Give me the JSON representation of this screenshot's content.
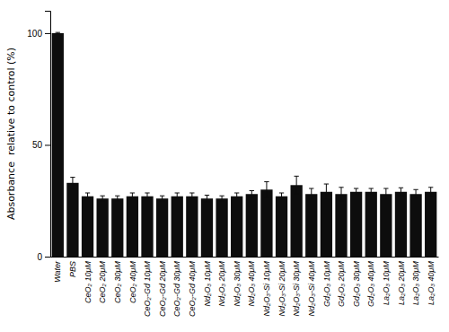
{
  "chart_data": {
    "type": "bar",
    "categories": [
      "Water",
      "PBS",
      "CeO₂ 10μM",
      "CeO₂ 20μM",
      "CeO₂ 30μM",
      "CeO₂ 40μM",
      "CeO₂-Gd 10μM",
      "CeO₂-Gd 20μM",
      "CeO₂-Gd 30μM",
      "CeO₂-Gd 40μM",
      "Nd₂O₃ 10μM",
      "Nd₂O₃ 20μM",
      "Nd₂O₃ 30μM",
      "Nd₂O₃ 40μM",
      "Nd₂O₃-Si 10μM",
      "Nd₂O₃-Si 20μM",
      "Nd₂O₃-Si 30μM",
      "Nd₂O₃-Si 40μM",
      "Gd₂O₃ 10μM",
      "Gd₂O₃ 20μM",
      "Gd₂O₃ 30μM",
      "Gd₂O₃ 40μM",
      "La₂O₃ 10μM",
      "La₂O₃ 20μM",
      "La₂O₃ 30μM",
      "La₂O₃ 40μM"
    ],
    "values": [
      100,
      33,
      27,
      26,
      26,
      27,
      27,
      26,
      27,
      27,
      26,
      26,
      27,
      28,
      30,
      27,
      32,
      28,
      29,
      28,
      29,
      29,
      28,
      29,
      28,
      29
    ],
    "errors": [
      0.3,
      2.5,
      1.5,
      1.2,
      1.2,
      1.5,
      1.5,
      1.2,
      1.5,
      1.5,
      1.5,
      1.2,
      1.5,
      1.5,
      3.5,
      1.5,
      4.0,
      2.5,
      3.5,
      3.0,
      1.5,
      1.5,
      2.5,
      1.8,
      2.0,
      2.0
    ],
    "color": "#0d0d0d",
    "ylabel": "Absorbance  relative to control (%)",
    "ylim": [
      0,
      110
    ],
    "yticks": [
      0,
      50,
      100
    ],
    "grid": false
  }
}
